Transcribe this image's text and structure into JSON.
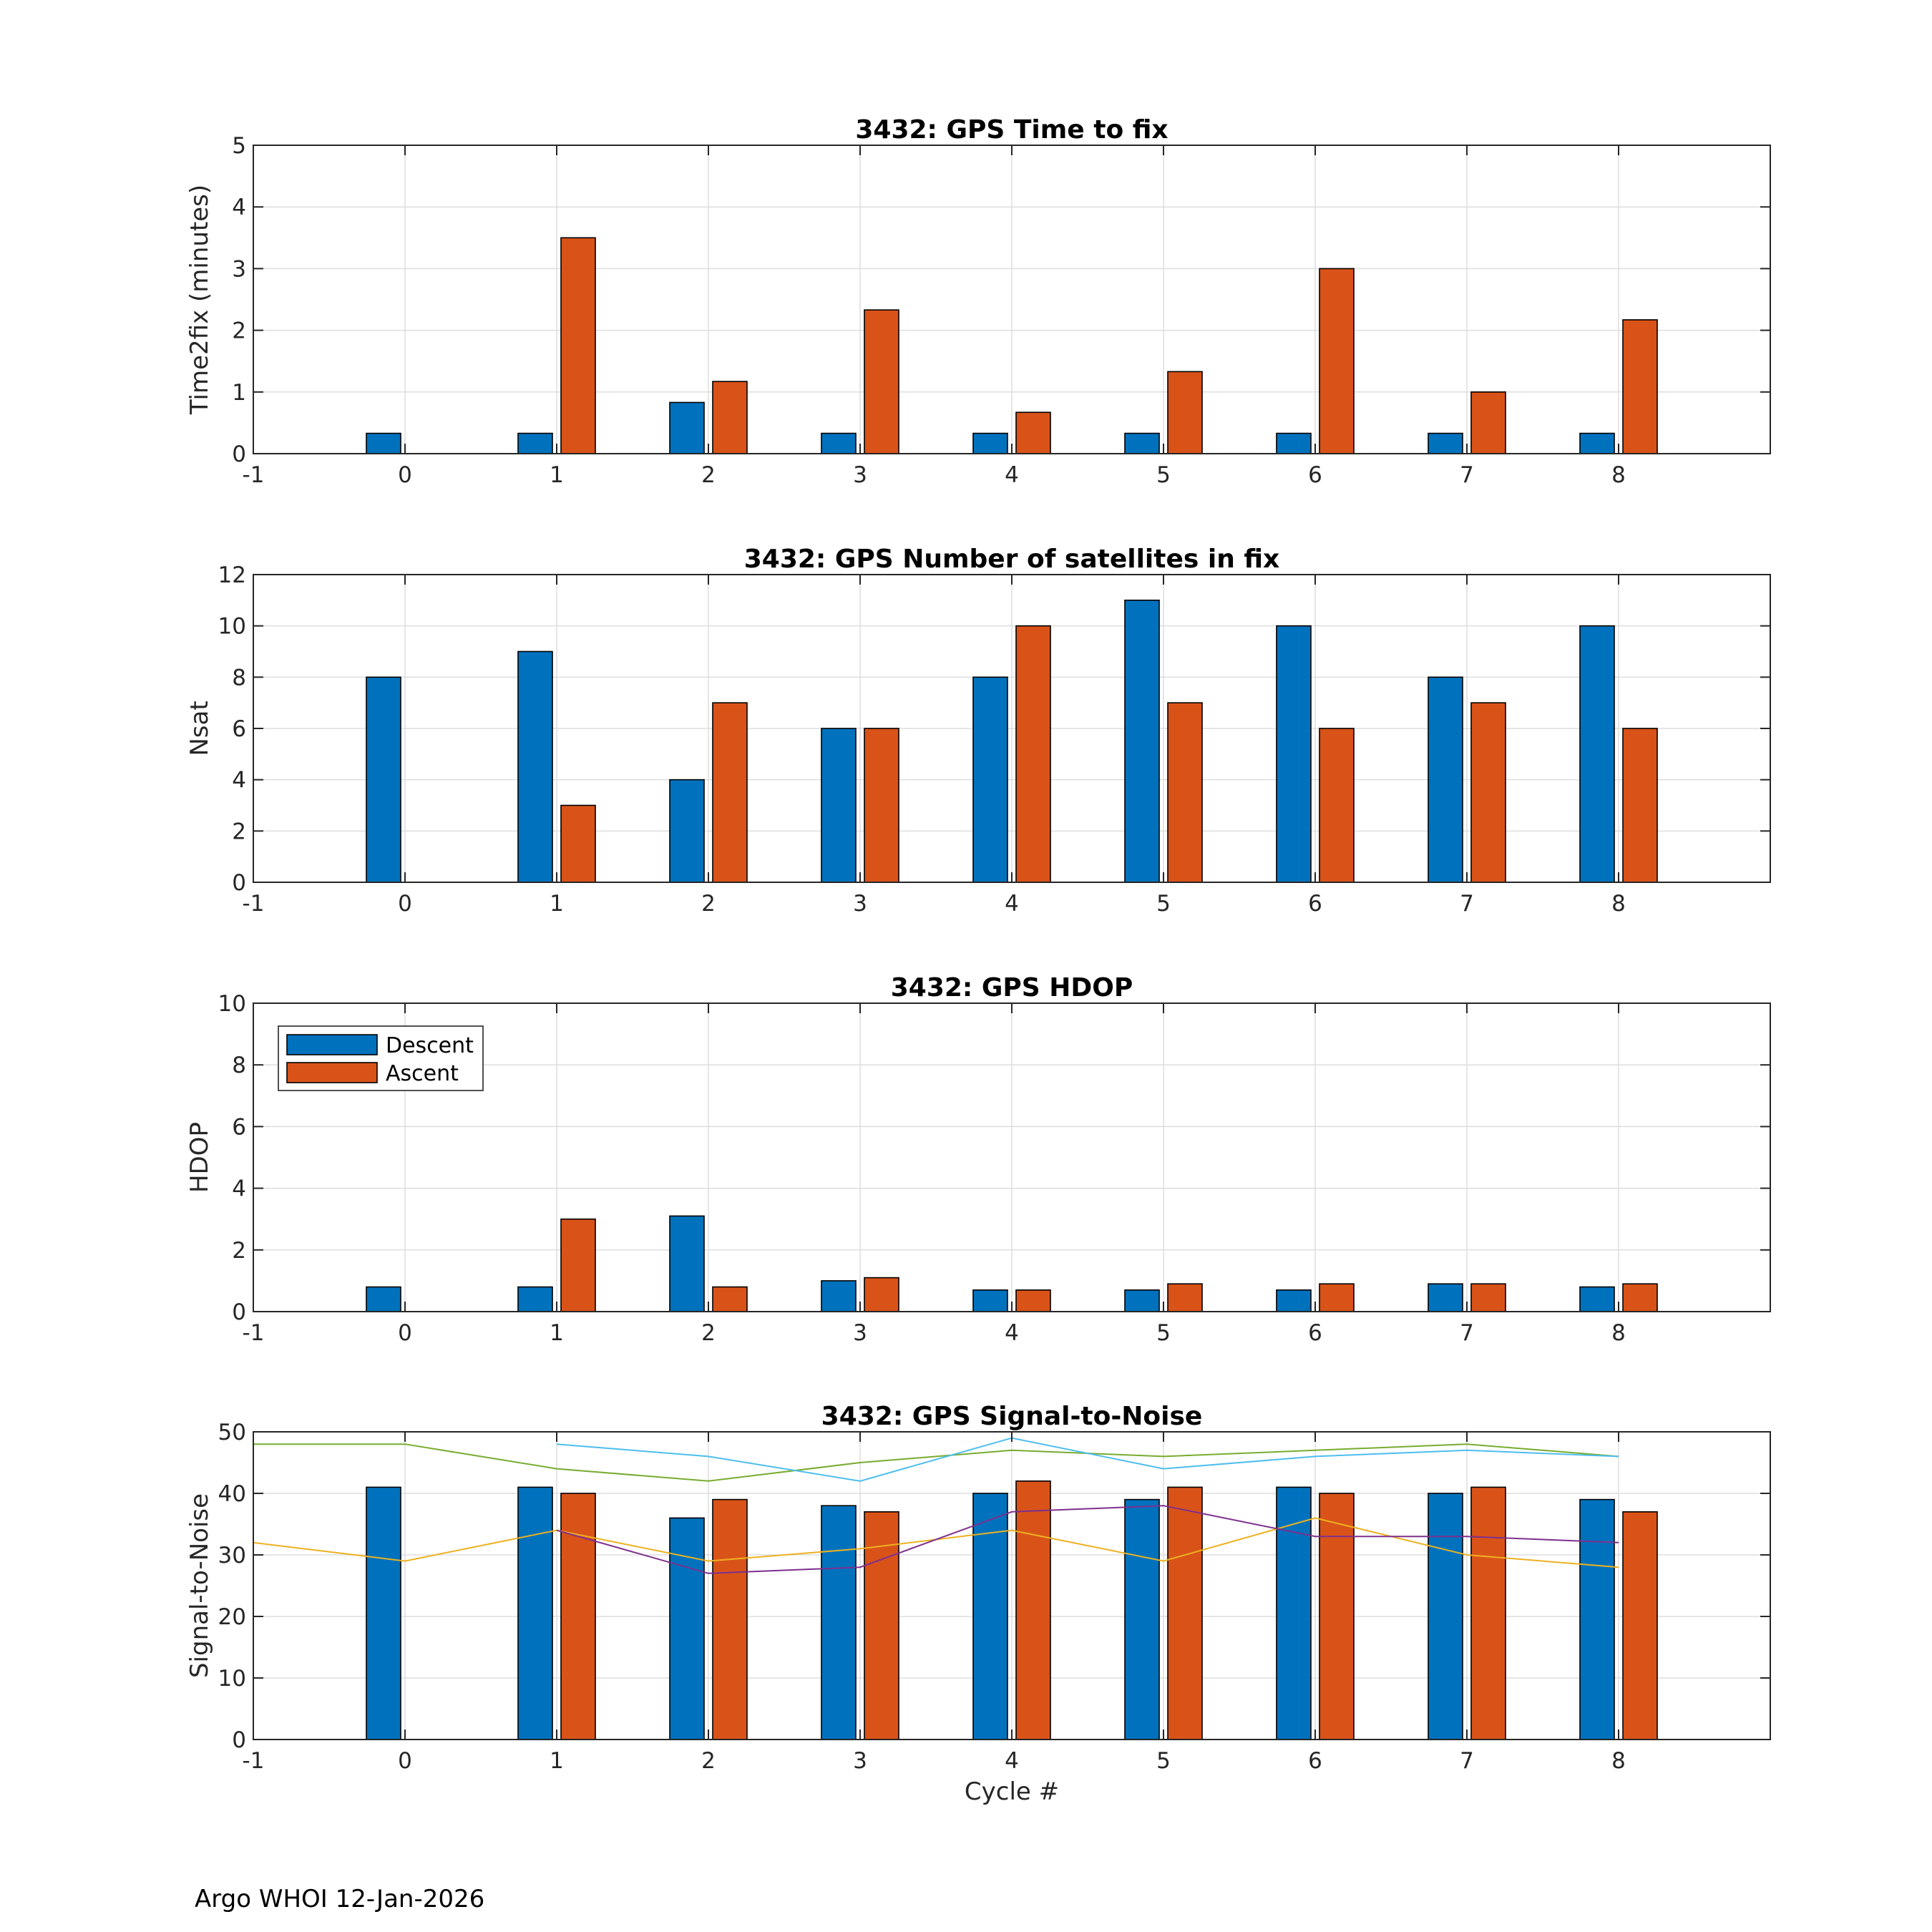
{
  "footer": "Argo WHOI 12-Jan-2026",
  "colors": {
    "descent": "#0072BD",
    "ascent": "#D95319",
    "grid": "#dedede",
    "axis": "#262626",
    "snr_lines": [
      "#EDB120",
      "#7E2F8E",
      "#77AC30",
      "#4DBEEE"
    ]
  },
  "chart_data": [
    {
      "type": "bar",
      "title": "3432: GPS Time to fix",
      "xlabel": "",
      "ylabel": "Time2fix (minutes)",
      "xlim": [
        -1,
        9
      ],
      "ylim": [
        0,
        5
      ],
      "xticks": [
        -1,
        0,
        1,
        2,
        3,
        4,
        5,
        6,
        7,
        8
      ],
      "yticks": [
        0,
        1,
        2,
        3,
        4,
        5
      ],
      "grid": true,
      "categories": [
        0,
        1,
        2,
        3,
        4,
        5,
        6,
        7,
        8
      ],
      "series": [
        {
          "name": "Descent",
          "values": [
            0.33,
            0.33,
            0.83,
            0.33,
            0.33,
            0.33,
            0.33,
            0.33,
            0.33
          ]
        },
        {
          "name": "Ascent",
          "values": [
            null,
            3.5,
            1.17,
            2.33,
            0.67,
            1.33,
            3.0,
            1.0,
            2.17
          ]
        }
      ]
    },
    {
      "type": "bar",
      "title": "3432: GPS Number of satellites in fix",
      "xlabel": "",
      "ylabel": "Nsat",
      "xlim": [
        -1,
        9
      ],
      "ylim": [
        0,
        12
      ],
      "xticks": [
        -1,
        0,
        1,
        2,
        3,
        4,
        5,
        6,
        7,
        8
      ],
      "yticks": [
        0,
        2,
        4,
        6,
        8,
        10,
        12
      ],
      "grid": true,
      "categories": [
        0,
        1,
        2,
        3,
        4,
        5,
        6,
        7,
        8
      ],
      "series": [
        {
          "name": "Descent",
          "values": [
            8,
            9,
            4,
            6,
            8,
            11,
            10,
            8,
            10
          ]
        },
        {
          "name": "Ascent",
          "values": [
            null,
            3,
            7,
            6,
            10,
            7,
            6,
            7,
            6
          ]
        }
      ]
    },
    {
      "type": "bar",
      "title": "3432: GPS HDOP",
      "xlabel": "",
      "ylabel": "HDOP",
      "xlim": [
        -1,
        9
      ],
      "ylim": [
        0,
        10
      ],
      "xticks": [
        -1,
        0,
        1,
        2,
        3,
        4,
        5,
        6,
        7,
        8
      ],
      "yticks": [
        0,
        2,
        4,
        6,
        8,
        10
      ],
      "grid": true,
      "legend": {
        "position": "top-left",
        "entries": [
          "Descent",
          "Ascent"
        ]
      },
      "categories": [
        0,
        1,
        2,
        3,
        4,
        5,
        6,
        7,
        8
      ],
      "series": [
        {
          "name": "Descent",
          "values": [
            0.8,
            0.8,
            3.1,
            1.0,
            0.7,
            0.7,
            0.7,
            0.9,
            0.8
          ]
        },
        {
          "name": "Ascent",
          "values": [
            null,
            3.0,
            0.8,
            1.1,
            0.7,
            0.9,
            0.9,
            0.9,
            0.9
          ]
        }
      ]
    },
    {
      "type": "bar",
      "title": "3432: GPS Signal-to-Noise",
      "xlabel": "Cycle #",
      "ylabel": "Signal-to-Noise",
      "xlim": [
        -1,
        9
      ],
      "ylim": [
        0,
        50
      ],
      "xticks": [
        -1,
        0,
        1,
        2,
        3,
        4,
        5,
        6,
        7,
        8
      ],
      "yticks": [
        0,
        10,
        20,
        30,
        40,
        50
      ],
      "grid": true,
      "categories": [
        0,
        1,
        2,
        3,
        4,
        5,
        6,
        7,
        8
      ],
      "series": [
        {
          "name": "Descent",
          "values": [
            41,
            41,
            36,
            38,
            40,
            39,
            41,
            40,
            39
          ]
        },
        {
          "name": "Ascent",
          "values": [
            null,
            40,
            39,
            37,
            42,
            41,
            40,
            41,
            37
          ]
        }
      ],
      "lines": [
        {
          "x": [
            -1,
            0,
            1,
            2,
            3,
            4,
            5,
            6,
            7,
            8
          ],
          "y": [
            32,
            29,
            34,
            29,
            31,
            34,
            29,
            36,
            30,
            28
          ]
        },
        {
          "x": [
            1,
            2,
            3,
            4,
            5,
            6,
            7,
            8
          ],
          "y": [
            34,
            27,
            28,
            37,
            38,
            33,
            33,
            32
          ]
        },
        {
          "x": [
            -1,
            0,
            1,
            2,
            3,
            4,
            5,
            6,
            7,
            8
          ],
          "y": [
            48,
            48,
            44,
            42,
            45,
            47,
            46,
            47,
            48,
            46
          ]
        },
        {
          "x": [
            1,
            2,
            3,
            4,
            5,
            6,
            7,
            8
          ],
          "y": [
            48,
            46,
            42,
            49,
            44,
            46,
            47,
            46
          ]
        }
      ]
    }
  ]
}
